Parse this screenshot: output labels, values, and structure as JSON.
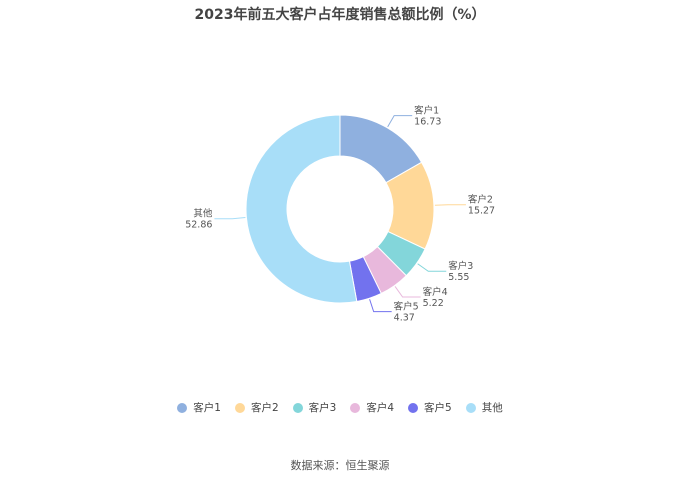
{
  "chart_data": {
    "type": "pie",
    "title": "2023年前五大客户占年度销售总额比例（%）",
    "donut": true,
    "slices": [
      {
        "label": "客户1",
        "value": 16.73,
        "value_text": "16.73",
        "color": "#8fb0df"
      },
      {
        "label": "客户2",
        "value": 15.27,
        "value_text": "15.27",
        "color": "#ffd898"
      },
      {
        "label": "客户3",
        "value": 5.55,
        "value_text": "5.55",
        "color": "#83d6da"
      },
      {
        "label": "客户4",
        "value": 5.22,
        "value_text": "5.22",
        "color": "#e8b8dc"
      },
      {
        "label": "客户5",
        "value": 4.37,
        "value_text": "4.37",
        "color": "#7272ee"
      },
      {
        "label": "其他",
        "value": 52.86,
        "value_text": "52.86",
        "color": "#a8def8"
      }
    ],
    "legend_position": "bottom"
  },
  "source": "数据来源：恒生聚源"
}
